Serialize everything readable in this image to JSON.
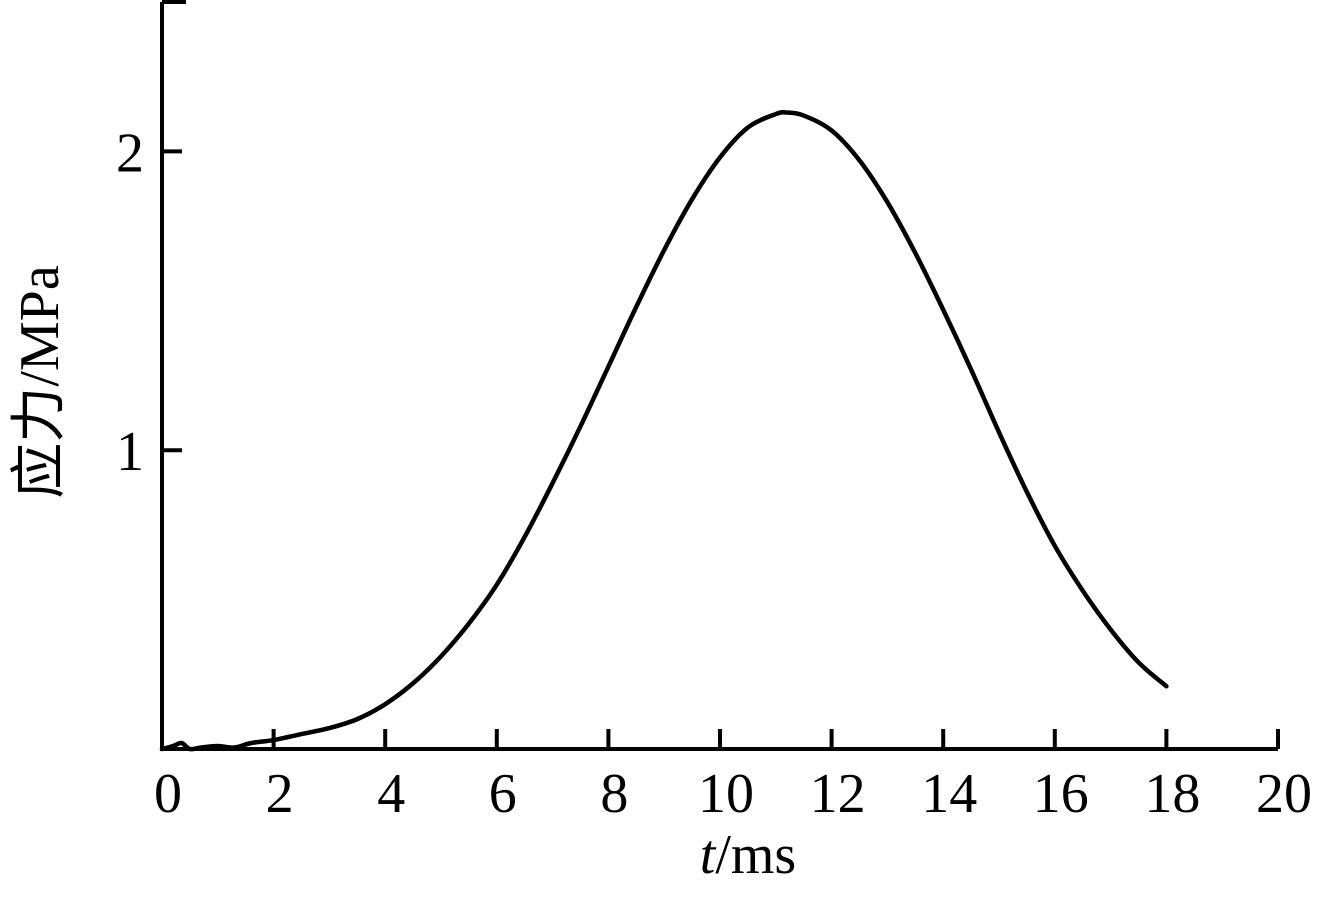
{
  "chart_data": {
    "type": "line",
    "xlabel": {
      "italic": "t",
      "rest": "/ms"
    },
    "ylabel": "应力/MPa",
    "xlim": [
      0,
      20
    ],
    "ylim": [
      0,
      2.5
    ],
    "x_ticks": [
      0,
      2,
      4,
      6,
      8,
      10,
      12,
      14,
      16,
      18,
      20
    ],
    "x_tick_labels": [
      "0",
      "2",
      "4",
      "6",
      "8",
      "10",
      "12",
      "14",
      "16",
      "18",
      "20"
    ],
    "y_ticks": [
      1,
      2
    ],
    "y_tick_labels": [
      "1",
      "2"
    ],
    "grid": false,
    "series": [
      {
        "color": "#000000",
        "x": [
          0,
          0.2,
          0.35,
          0.5,
          0.7,
          1.0,
          1.3,
          1.6,
          2.0,
          2.5,
          3.0,
          3.5,
          4.0,
          4.5,
          5.0,
          5.5,
          6.0,
          6.5,
          7.0,
          7.5,
          8.0,
          8.5,
          9.0,
          9.5,
          10.0,
          10.5,
          11.0,
          11.2,
          11.5,
          12.0,
          12.5,
          13.0,
          13.5,
          14.0,
          14.5,
          15.0,
          15.5,
          16.0,
          16.5,
          17.0,
          17.5,
          18.0
        ],
        "y": [
          0.0,
          0.01,
          0.02,
          0.0,
          0.005,
          0.01,
          0.005,
          0.02,
          0.03,
          0.05,
          0.07,
          0.1,
          0.15,
          0.22,
          0.31,
          0.42,
          0.55,
          0.71,
          0.89,
          1.08,
          1.28,
          1.48,
          1.67,
          1.84,
          1.98,
          2.08,
          2.125,
          2.13,
          2.12,
          2.07,
          1.97,
          1.83,
          1.66,
          1.47,
          1.27,
          1.06,
          0.86,
          0.68,
          0.53,
          0.4,
          0.29,
          0.21
        ]
      }
    ]
  }
}
